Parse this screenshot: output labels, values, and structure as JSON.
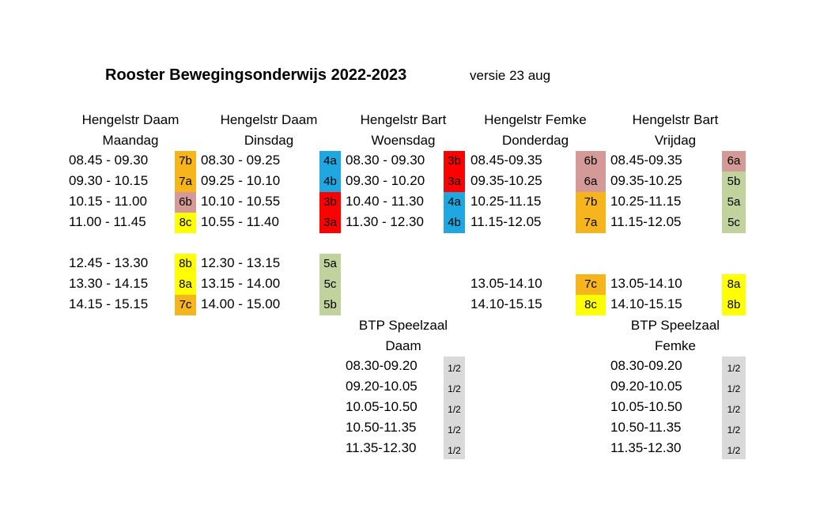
{
  "title": "Rooster Bewegingsonderwijs 2022-2023",
  "version": "versie 23 aug",
  "columns": [
    {
      "location": "Hengelstr Daam",
      "day": "Maandag",
      "slots": [
        {
          "time": "08.45 - 09.30",
          "class": "7b",
          "color": "#f6b51c"
        },
        {
          "time": "09.30 - 10.15",
          "class": "7a",
          "color": "#f6b51c"
        },
        {
          "time": "10.15 - 11.00",
          "class": "6b",
          "color": "#d39a97"
        },
        {
          "time": "11.00 - 11.45",
          "class": "8c",
          "color": "#ffff00"
        },
        {
          "time": "",
          "class": "",
          "color": ""
        },
        {
          "time": "12.45 - 13.30",
          "class": "8b",
          "color": "#ffff00"
        },
        {
          "time": "13.30 - 14.15",
          "class": "8a",
          "color": "#ffff00"
        },
        {
          "time": "14.15 - 15.15",
          "class": "7c",
          "color": "#f6b51c"
        }
      ]
    },
    {
      "location": "Hengelstr Daam",
      "day": "Dinsdag",
      "slots": [
        {
          "time": "08.30 - 09.25",
          "class": "4a",
          "color": "#1ea7e1"
        },
        {
          "time": "09.25 - 10.10",
          "class": "4b",
          "color": "#1ea7e1"
        },
        {
          "time": "10.10 - 10.55",
          "class": "3b",
          "color": "#ff0000"
        },
        {
          "time": "10.55 - 11.40",
          "class": "3a",
          "color": "#ff0000"
        },
        {
          "time": "",
          "class": "",
          "color": ""
        },
        {
          "time": "12.30 - 13.15",
          "class": "5a",
          "color": "#c0d39c"
        },
        {
          "time": "13.15 - 14.00",
          "class": "5c",
          "color": "#c0d39c"
        },
        {
          "time": "14.00 - 15.00",
          "class": "5b",
          "color": "#c0d39c"
        }
      ]
    },
    {
      "location": "Hengelstr Bart",
      "day": "Woensdag",
      "slots": [
        {
          "time": "08.30 - 09.30",
          "class": "3b",
          "color": "#ff0000"
        },
        {
          "time": "09.30 - 10.20",
          "class": "3a",
          "color": "#ff0000"
        },
        {
          "time": "10.40 - 11.30",
          "class": "4a",
          "color": "#1ea7e1"
        },
        {
          "time": "11.30 - 12.30",
          "class": "4b",
          "color": "#1ea7e1"
        }
      ]
    },
    {
      "location": "Hengelstr Femke",
      "day": "Donderdag",
      "slots": [
        {
          "time": "08.45-09.35",
          "class": "6b",
          "color": "#d39a97"
        },
        {
          "time": "09.35-10.25",
          "class": "6a",
          "color": "#d39a97"
        },
        {
          "time": "10.25-11.15",
          "class": "7b",
          "color": "#f6b51c"
        },
        {
          "time": "11.15-12.05",
          "class": "7a",
          "color": "#f6b51c"
        },
        {
          "time": "",
          "class": "",
          "color": ""
        },
        {
          "time": "",
          "class": "",
          "color": ""
        },
        {
          "time": "13.05-14.10",
          "class": "7c",
          "color": "#f6b51c"
        },
        {
          "time": "14.10-15.15",
          "class": "8c",
          "color": "#ffff00"
        }
      ]
    },
    {
      "location": "Hengelstr Bart",
      "day": "Vrijdag",
      "slots": [
        {
          "time": "08.45-09.35",
          "class": "6a",
          "color": "#d39a97"
        },
        {
          "time": "09.35-10.25",
          "class": "5b",
          "color": "#c0d39c"
        },
        {
          "time": "10.25-11.15",
          "class": "5a",
          "color": "#c0d39c"
        },
        {
          "time": "11.15-12.05",
          "class": "5c",
          "color": "#c0d39c"
        },
        {
          "time": "",
          "class": "",
          "color": ""
        },
        {
          "time": "",
          "class": "",
          "color": ""
        },
        {
          "time": "13.05-14.10",
          "class": "8a",
          "color": "#ffff00"
        },
        {
          "time": "14.10-15.15",
          "class": "8b",
          "color": "#ffff00"
        }
      ]
    }
  ],
  "btp": [
    {
      "title": "BTP Speelzaal",
      "teacher": "Daam",
      "slots": [
        {
          "time": "08.30-09.20",
          "class": "1/2",
          "color": "#d9d9d9"
        },
        {
          "time": "09.20-10.05",
          "class": "1/2",
          "color": "#d9d9d9"
        },
        {
          "time": "10.05-10.50",
          "class": "1/2",
          "color": "#d9d9d9"
        },
        {
          "time": "10.50-11.35",
          "class": "1/2",
          "color": "#d9d9d9"
        },
        {
          "time": "11.35-12.30",
          "class": "1/2",
          "color": "#d9d9d9"
        }
      ]
    },
    {
      "title": "BTP Speelzaal",
      "teacher": "Femke",
      "slots": [
        {
          "time": "08.30-09.20",
          "class": "1/2",
          "color": "#d9d9d9"
        },
        {
          "time": "09.20-10.05",
          "class": "1/2",
          "color": "#d9d9d9"
        },
        {
          "time": "10.05-10.50",
          "class": "1/2",
          "color": "#d9d9d9"
        },
        {
          "time": "10.50-11.35",
          "class": "1/2",
          "color": "#d9d9d9"
        },
        {
          "time": "11.35-12.30",
          "class": "1/2",
          "color": "#d9d9d9"
        }
      ]
    }
  ]
}
